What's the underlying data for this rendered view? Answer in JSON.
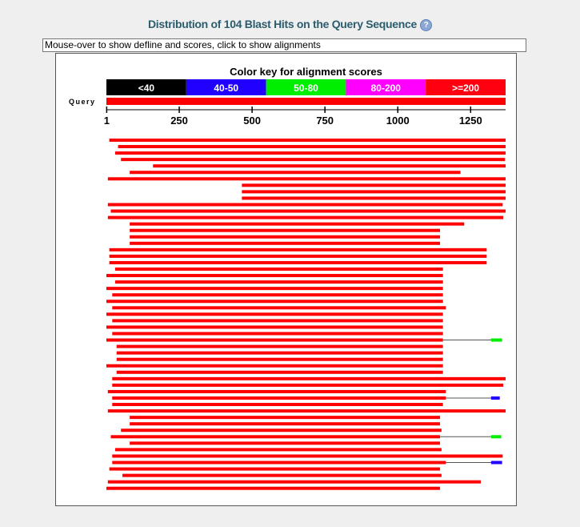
{
  "header": {
    "title": "Distribution of 104 Blast Hits on the Query Sequence",
    "help_icon": "help-icon"
  },
  "defline": {
    "text": "Mouse-over to show defline and scores, click to show alignments"
  },
  "color_key": {
    "title": "Color key for alignment scores",
    "bins": [
      {
        "label": "<40",
        "color": "#000000"
      },
      {
        "label": "40-50",
        "color": "#2200ff"
      },
      {
        "label": "50-80",
        "color": "#00ee00"
      },
      {
        "label": "80-200",
        "color": "#ff00ff"
      },
      {
        "label": ">=200",
        "color": "#ff0011"
      }
    ]
  },
  "query": {
    "label": "Query",
    "length": 1370,
    "color": "#ff0000"
  },
  "axis": {
    "ticks": [
      {
        "value": 1,
        "label": "1"
      },
      {
        "value": 250,
        "label": "250"
      },
      {
        "value": 500,
        "label": "500"
      },
      {
        "value": 750,
        "label": "750"
      },
      {
        "value": 1000,
        "label": "1000"
      },
      {
        "value": 1250,
        "label": "1250"
      }
    ]
  },
  "hits": [
    {
      "segments": [
        [
          10,
          1370
        ]
      ]
    },
    {
      "segments": [
        [
          40,
          1370
        ]
      ]
    },
    {
      "segments": [
        [
          30,
          1370
        ]
      ]
    },
    {
      "segments": [
        [
          50,
          1368
        ]
      ]
    },
    {
      "segments": [
        [
          160,
          1370
        ]
      ]
    },
    {
      "segments": [
        [
          80,
          1215
        ]
      ]
    },
    {
      "segments": [
        [
          5,
          1370
        ]
      ]
    },
    {
      "segments": [
        [
          465,
          1370
        ]
      ]
    },
    {
      "segments": [
        [
          465,
          1370
        ]
      ]
    },
    {
      "segments": [
        [
          465,
          1370
        ]
      ]
    },
    {
      "segments": [
        [
          5,
          1360
        ]
      ]
    },
    {
      "segments": [
        [
          15,
          1370
        ]
      ]
    },
    {
      "segments": [
        [
          5,
          1362
        ]
      ]
    },
    {
      "segments": [
        [
          80,
          1228
        ]
      ]
    },
    {
      "segments": [
        [
          80,
          1145
        ]
      ]
    },
    {
      "segments": [
        [
          80,
          1145
        ]
      ]
    },
    {
      "segments": [
        [
          80,
          1145
        ]
      ]
    },
    {
      "segments": [
        [
          10,
          1305
        ]
      ]
    },
    {
      "segments": [
        [
          10,
          1305
        ]
      ]
    },
    {
      "segments": [
        [
          10,
          1305
        ]
      ]
    },
    {
      "segments": [
        [
          30,
          1155
        ]
      ]
    },
    {
      "segments": [
        [
          0,
          1155
        ]
      ]
    },
    {
      "segments": [
        [
          30,
          1155
        ]
      ]
    },
    {
      "segments": [
        [
          0,
          1155
        ]
      ]
    },
    {
      "segments": [
        [
          20,
          1155
        ]
      ]
    },
    {
      "segments": [
        [
          0,
          1155
        ]
      ]
    },
    {
      "segments": [
        [
          20,
          1165
        ]
      ]
    },
    {
      "segments": [
        [
          0,
          1155
        ]
      ]
    },
    {
      "segments": [
        [
          20,
          1155
        ]
      ]
    },
    {
      "segments": [
        [
          0,
          1155
        ]
      ]
    },
    {
      "segments": [
        [
          20,
          1155
        ]
      ]
    },
    {
      "segments": [
        [
          0,
          1155
        ]
      ],
      "gap_to": 1320,
      "tail": {
        "range": [
          1320,
          1358
        ],
        "color": "#00ee00"
      }
    },
    {
      "segments": [
        [
          35,
          1155
        ]
      ]
    },
    {
      "segments": [
        [
          35,
          1155
        ]
      ]
    },
    {
      "segments": [
        [
          35,
          1155
        ]
      ]
    },
    {
      "segments": [
        [
          0,
          1155
        ]
      ]
    },
    {
      "segments": [
        [
          35,
          1155
        ]
      ]
    },
    {
      "segments": [
        [
          20,
          1370
        ]
      ]
    },
    {
      "segments": [
        [
          20,
          1362
        ]
      ]
    },
    {
      "segments": [
        [
          5,
          1165
        ]
      ]
    },
    {
      "segments": [
        [
          20,
          1165
        ]
      ],
      "gap_to": 1320,
      "tail": {
        "range": [
          1320,
          1350
        ],
        "color": "#2200ff"
      }
    },
    {
      "segments": [
        [
          20,
          1155
        ]
      ]
    },
    {
      "segments": [
        [
          5,
          1370
        ]
      ]
    },
    {
      "segments": [
        [
          80,
          1145
        ]
      ]
    },
    {
      "segments": [
        [
          80,
          1145
        ]
      ]
    },
    {
      "segments": [
        [
          50,
          1150
        ]
      ]
    },
    {
      "segments": [
        [
          15,
          1145
        ]
      ],
      "gap_to": 1320,
      "tail": {
        "range": [
          1320,
          1355
        ],
        "color": "#00ee00"
      }
    },
    {
      "segments": [
        [
          80,
          1145
        ]
      ]
    },
    {
      "segments": [
        [
          30,
          1150
        ]
      ]
    },
    {
      "segments": [
        [
          20,
          1360
        ]
      ]
    },
    {
      "segments": [
        [
          20,
          1165
        ]
      ],
      "gap_to": 1320,
      "tail": {
        "range": [
          1320,
          1358
        ],
        "color": "#2200ff"
      }
    },
    {
      "segments": [
        [
          10,
          1145
        ]
      ]
    },
    {
      "segments": [
        [
          55,
          1150
        ]
      ]
    },
    {
      "segments": [
        [
          5,
          1285
        ]
      ]
    },
    {
      "segments": [
        [
          0,
          1145
        ]
      ]
    }
  ]
}
